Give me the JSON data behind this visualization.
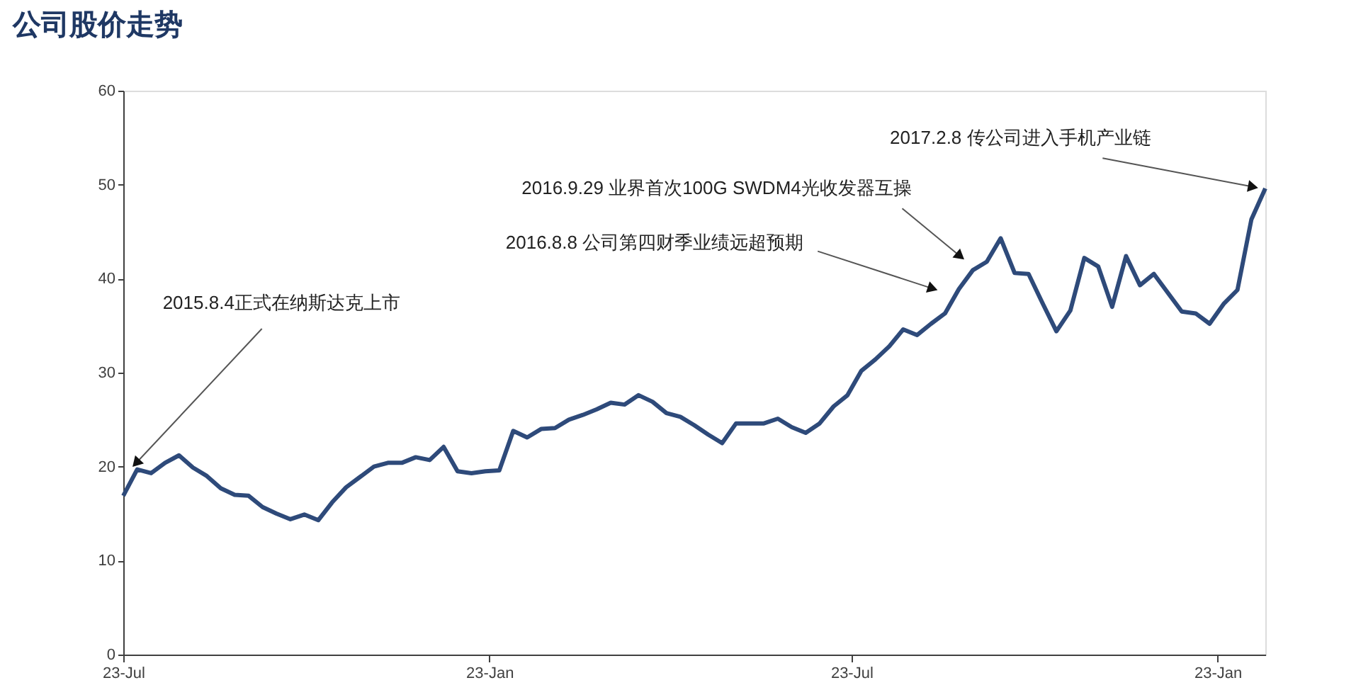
{
  "chart_data": {
    "type": "line",
    "title": "公司股价走势",
    "x": [
      "2015-07-23",
      "2015-07-30",
      "2015-08-06",
      "2015-08-13",
      "2015-08-20",
      "2015-08-27",
      "2015-09-03",
      "2015-09-10",
      "2015-09-17",
      "2015-09-24",
      "2015-10-01",
      "2015-10-08",
      "2015-10-15",
      "2015-10-22",
      "2015-10-29",
      "2015-11-05",
      "2015-11-12",
      "2015-11-19",
      "2015-11-26",
      "2015-12-03",
      "2015-12-10",
      "2015-12-17",
      "2015-12-24",
      "2015-12-31",
      "2016-01-07",
      "2016-01-14",
      "2016-01-21",
      "2016-01-28",
      "2016-02-04",
      "2016-02-11",
      "2016-02-18",
      "2016-02-25",
      "2016-03-03",
      "2016-03-10",
      "2016-03-17",
      "2016-03-24",
      "2016-03-31",
      "2016-04-07",
      "2016-04-14",
      "2016-04-21",
      "2016-04-28",
      "2016-05-05",
      "2016-05-12",
      "2016-05-19",
      "2016-05-26",
      "2016-06-02",
      "2016-06-09",
      "2016-06-16",
      "2016-06-23",
      "2016-06-30",
      "2016-07-07",
      "2016-07-14",
      "2016-07-21",
      "2016-07-28",
      "2016-08-04",
      "2016-08-11",
      "2016-08-18",
      "2016-08-25",
      "2016-09-01",
      "2016-09-08",
      "2016-09-15",
      "2016-09-22",
      "2016-09-29",
      "2016-10-06",
      "2016-10-13",
      "2016-10-20",
      "2016-10-27",
      "2016-11-03",
      "2016-11-10",
      "2016-11-17",
      "2016-11-24",
      "2016-12-01",
      "2016-12-08",
      "2016-12-15",
      "2016-12-22",
      "2016-12-29",
      "2017-01-05",
      "2017-01-12",
      "2017-01-19",
      "2017-01-26",
      "2017-02-02",
      "2017-02-09",
      "2017-02-16"
    ],
    "series": [
      {
        "color": "#2e4a7a",
        "values": [
          16.9,
          19.7,
          19.3,
          20.4,
          21.2,
          19.9,
          19.0,
          17.7,
          17.0,
          16.9,
          15.7,
          15.0,
          14.4,
          14.9,
          14.3,
          16.2,
          17.8,
          18.9,
          20.0,
          20.4,
          20.4,
          21.0,
          20.7,
          22.1,
          19.5,
          19.3,
          19.5,
          19.6,
          23.8,
          23.1,
          24.0,
          24.1,
          25.0,
          25.5,
          26.1,
          26.8,
          26.6,
          27.6,
          26.9,
          25.7,
          25.3,
          24.4,
          23.4,
          22.5,
          24.6,
          24.6,
          24.6,
          25.1,
          24.2,
          23.6,
          24.6,
          26.4,
          27.6,
          30.2,
          31.4,
          32.8,
          34.6,
          34.0,
          35.2,
          36.3,
          38.9,
          40.9,
          41.8,
          44.3,
          40.6,
          40.5,
          37.4,
          34.4,
          36.6,
          42.2,
          41.3,
          37.0,
          42.4,
          39.3,
          40.5,
          38.5,
          36.5,
          36.3,
          35.2,
          37.3,
          38.8,
          46.3,
          49.6
        ]
      }
    ],
    "xlim": [
      "2015-07-23",
      "2017-02-16"
    ],
    "xticks": [
      {
        "value": "2015-07-23",
        "label": "23-Jul"
      },
      {
        "value": "2016-01-23",
        "label": "23-Jan"
      },
      {
        "value": "2016-07-23",
        "label": "23-Jul"
      },
      {
        "value": "2017-01-23",
        "label": "23-Jan"
      }
    ],
    "ylim": [
      0,
      60
    ],
    "yticks": [
      0,
      10,
      20,
      30,
      40,
      50,
      60
    ],
    "grid": false,
    "marker": "none",
    "line_style": "solid",
    "annotations": [
      {
        "text": "2015.8.4正式在纳斯达克上市",
        "x": "2015-07-30",
        "y": 20.5
      },
      {
        "text": "2016.8.8 公司第四财季业绩远超预期",
        "x": "2016-09-01",
        "y": 39
      },
      {
        "text": "2016.9.29 业界首次100G SWDM4光收发器互操",
        "x": "2016-09-15",
        "y": 42.5
      },
      {
        "text": "2017.2.8 传公司进入手机产业链",
        "x": "2017-02-09",
        "y": 49.8
      }
    ]
  }
}
